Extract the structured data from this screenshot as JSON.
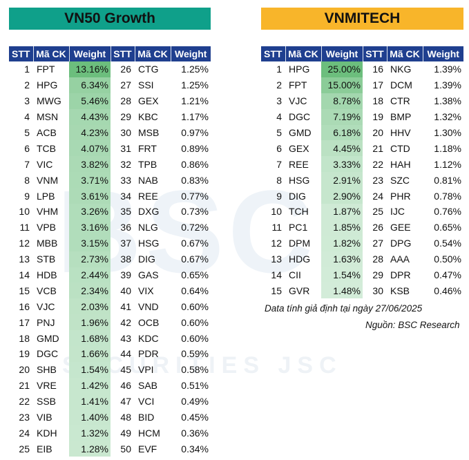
{
  "colors": {
    "left_title_bg": "#0fa08a",
    "right_title_bg": "#f8b52a",
    "header_bg": "#1f3f8f"
  },
  "watermark": {
    "logo_text": "BSC",
    "company_text": "SECURITIES JSC"
  },
  "left": {
    "title": "VN50 Growth",
    "headers": [
      "STT",
      "Mã CK",
      "Weight",
      "STT",
      "Mã CK",
      "Weight"
    ],
    "max_weight": 13.16,
    "rows": [
      [
        "1",
        "FPT",
        "13.16%",
        "26",
        "CTG",
        "1.25%"
      ],
      [
        "2",
        "HPG",
        "6.34%",
        "27",
        "SSI",
        "1.25%"
      ],
      [
        "3",
        "MWG",
        "5.46%",
        "28",
        "GEX",
        "1.21%"
      ],
      [
        "4",
        "MSN",
        "4.43%",
        "29",
        "KBC",
        "1.17%"
      ],
      [
        "5",
        "ACB",
        "4.23%",
        "30",
        "MSB",
        "0.97%"
      ],
      [
        "6",
        "TCB",
        "4.07%",
        "31",
        "FRT",
        "0.89%"
      ],
      [
        "7",
        "VIC",
        "3.82%",
        "32",
        "TPB",
        "0.86%"
      ],
      [
        "8",
        "VNM",
        "3.71%",
        "33",
        "NAB",
        "0.83%"
      ],
      [
        "9",
        "LPB",
        "3.61%",
        "34",
        "REE",
        "0.77%"
      ],
      [
        "10",
        "VHM",
        "3.26%",
        "35",
        "DXG",
        "0.73%"
      ],
      [
        "11",
        "VPB",
        "3.16%",
        "36",
        "NLG",
        "0.72%"
      ],
      [
        "12",
        "MBB",
        "3.15%",
        "37",
        "HSG",
        "0.67%"
      ],
      [
        "13",
        "STB",
        "2.73%",
        "38",
        "DIG",
        "0.67%"
      ],
      [
        "14",
        "HDB",
        "2.44%",
        "39",
        "GAS",
        "0.65%"
      ],
      [
        "15",
        "VCB",
        "2.34%",
        "40",
        "VIX",
        "0.64%"
      ],
      [
        "16",
        "VJC",
        "2.03%",
        "41",
        "VND",
        "0.60%"
      ],
      [
        "17",
        "PNJ",
        "1.96%",
        "42",
        "OCB",
        "0.60%"
      ],
      [
        "18",
        "GMD",
        "1.68%",
        "43",
        "KDC",
        "0.60%"
      ],
      [
        "19",
        "DGC",
        "1.66%",
        "44",
        "PDR",
        "0.59%"
      ],
      [
        "20",
        "SHB",
        "1.54%",
        "45",
        "VPI",
        "0.58%"
      ],
      [
        "21",
        "VRE",
        "1.42%",
        "46",
        "SAB",
        "0.51%"
      ],
      [
        "22",
        "SSB",
        "1.41%",
        "47",
        "VCI",
        "0.49%"
      ],
      [
        "23",
        "VIB",
        "1.40%",
        "48",
        "BID",
        "0.45%"
      ],
      [
        "24",
        "KDH",
        "1.32%",
        "49",
        "HCM",
        "0.36%"
      ],
      [
        "25",
        "EIB",
        "1.28%",
        "50",
        "EVF",
        "0.34%"
      ]
    ]
  },
  "right": {
    "title": "VNMITECH",
    "headers": [
      "STT",
      "Mã CK",
      "Weight",
      "STT",
      "Mã CK",
      "Weight"
    ],
    "max_weight": 25.0,
    "rows": [
      [
        "1",
        "HPG",
        "25.00%",
        "16",
        "NKG",
        "1.39%"
      ],
      [
        "2",
        "FPT",
        "15.00%",
        "17",
        "DCM",
        "1.39%"
      ],
      [
        "3",
        "VJC",
        "8.78%",
        "18",
        "CTR",
        "1.38%"
      ],
      [
        "4",
        "DGC",
        "7.19%",
        "19",
        "BMP",
        "1.32%"
      ],
      [
        "5",
        "GMD",
        "6.18%",
        "20",
        "HHV",
        "1.30%"
      ],
      [
        "6",
        "GEX",
        "4.45%",
        "21",
        "CTD",
        "1.18%"
      ],
      [
        "7",
        "REE",
        "3.33%",
        "22",
        "HAH",
        "1.12%"
      ],
      [
        "8",
        "HSG",
        "2.91%",
        "23",
        "SZC",
        "0.81%"
      ],
      [
        "9",
        "DIG",
        "2.90%",
        "24",
        "PHR",
        "0.78%"
      ],
      [
        "10",
        "TCH",
        "1.87%",
        "25",
        "IJC",
        "0.76%"
      ],
      [
        "11",
        "PC1",
        "1.85%",
        "26",
        "GEE",
        "0.65%"
      ],
      [
        "12",
        "DPM",
        "1.82%",
        "27",
        "DPG",
        "0.54%"
      ],
      [
        "13",
        "HDG",
        "1.63%",
        "28",
        "AAA",
        "0.50%"
      ],
      [
        "14",
        "CII",
        "1.54%",
        "29",
        "DPR",
        "0.47%"
      ],
      [
        "15",
        "GVR",
        "1.48%",
        "30",
        "KSB",
        "0.46%"
      ]
    ]
  },
  "notes": {
    "date": "Data tính giả định tại ngày 27/06/2025",
    "source": "Nguồn: BSC Research"
  }
}
